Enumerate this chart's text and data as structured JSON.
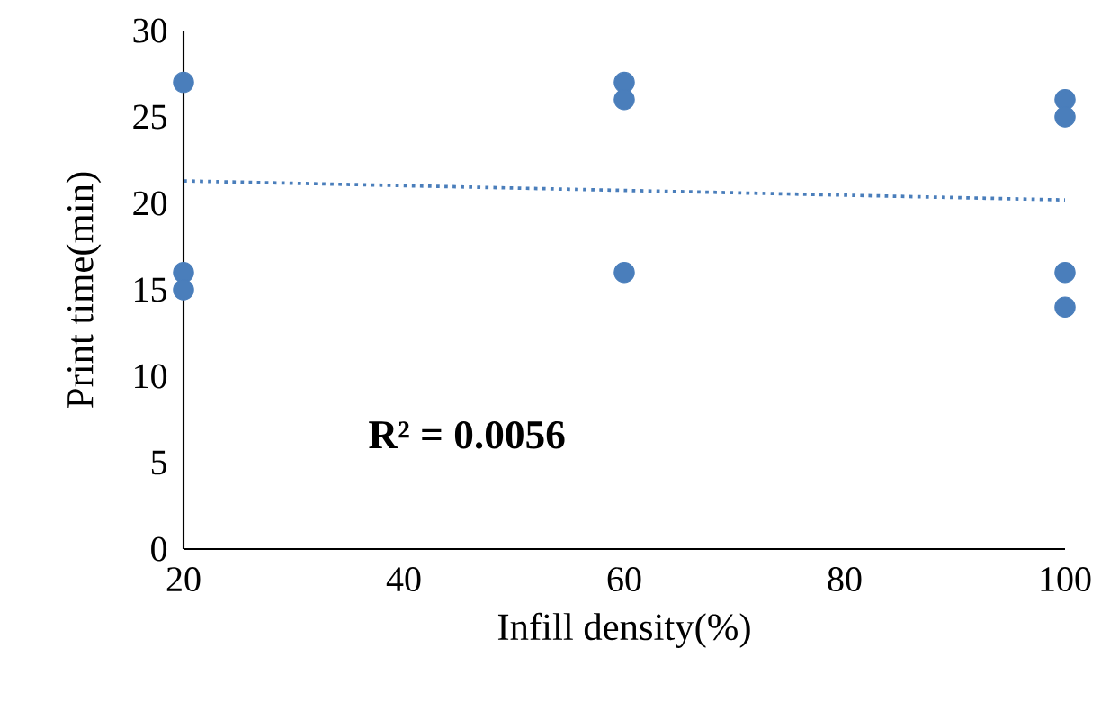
{
  "chart_data": {
    "type": "scatter",
    "xlabel": "Infill density(%)",
    "ylabel": "Print time(min)",
    "xlim": [
      20,
      100
    ],
    "ylim": [
      0,
      30
    ],
    "xticks": [
      20,
      40,
      60,
      80,
      100
    ],
    "yticks": [
      0,
      5,
      10,
      15,
      20,
      25,
      30
    ],
    "grid": false,
    "series": [
      {
        "marker": "circle",
        "color": "#4a7ebb",
        "x": [
          20,
          20,
          20,
          60,
          60,
          60,
          100,
          100,
          100,
          100
        ],
        "values": [
          27,
          16,
          15,
          27,
          26,
          16,
          26,
          25,
          16,
          14
        ]
      },
      {
        "type": "line",
        "line_style": "dotted",
        "marker": "none",
        "color": "#4a7ebb",
        "x": [
          20,
          100
        ],
        "values": [
          21.3,
          20.2
        ]
      }
    ],
    "annotations": [
      "R² = 0.0056"
    ]
  }
}
